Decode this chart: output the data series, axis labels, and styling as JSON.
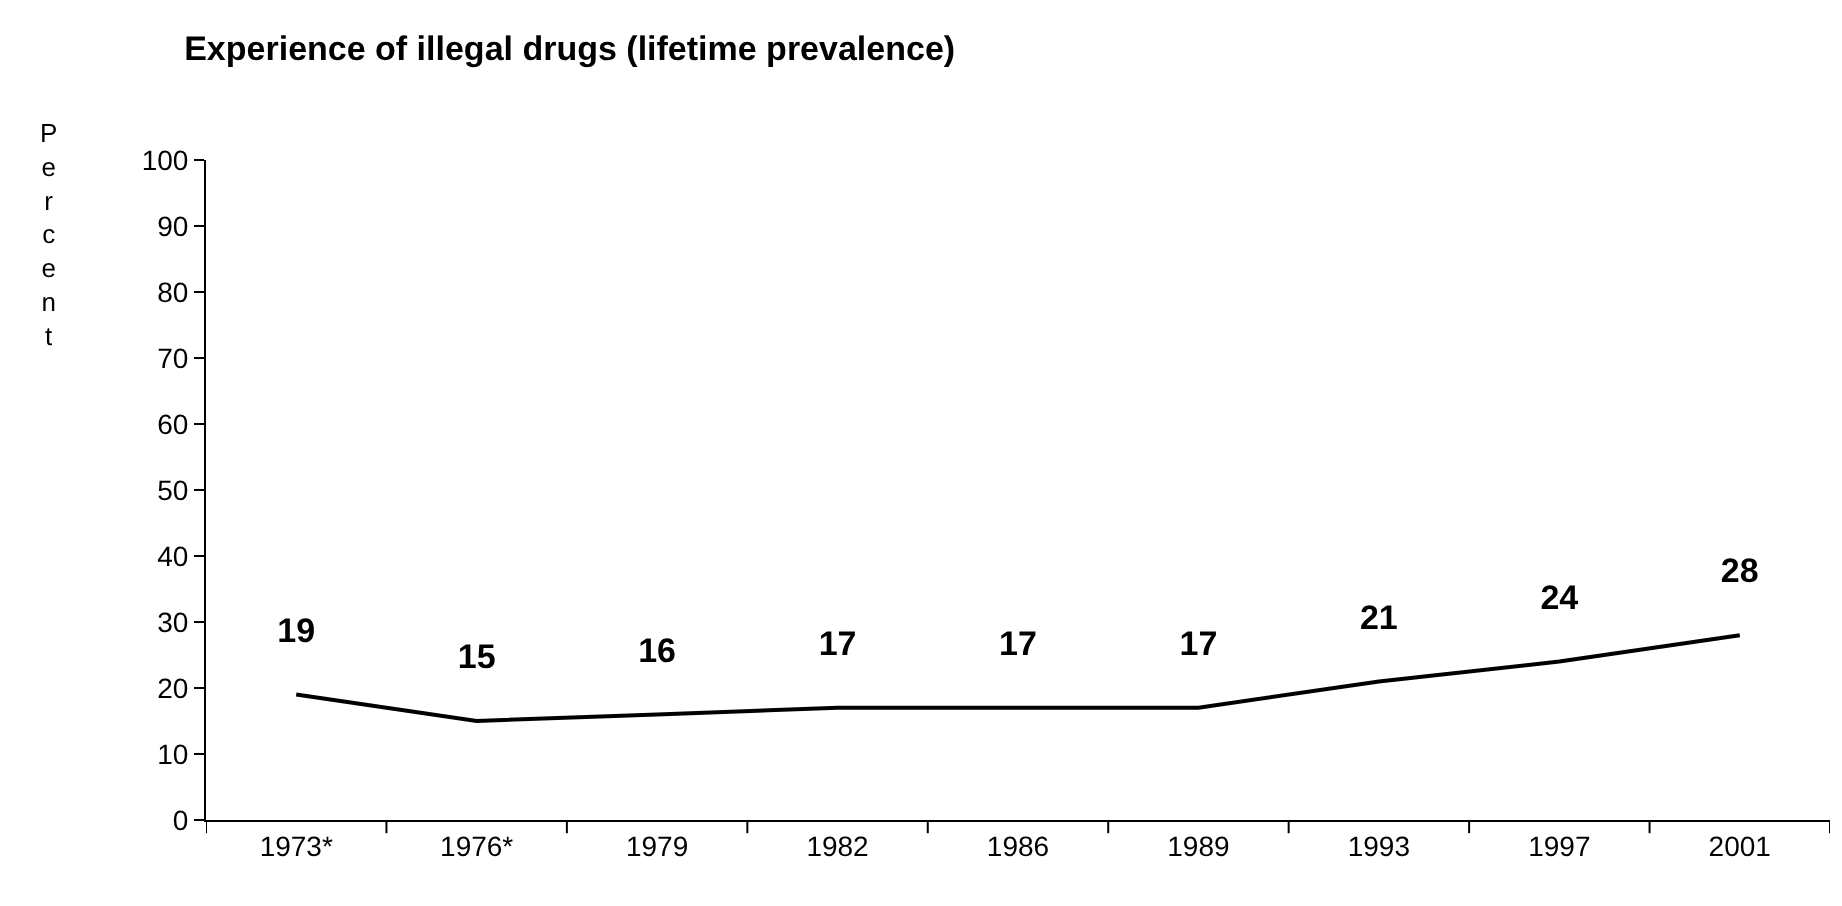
{
  "chart_data": {
    "type": "line",
    "title": "Experience of illegal drugs (lifetime prevalence)",
    "ylabel": "Percent",
    "categories": [
      "1973*",
      "1976*",
      "1979",
      "1982",
      "1986",
      "1989",
      "1993",
      "1997",
      "2001"
    ],
    "values": [
      19,
      15,
      16,
      17,
      17,
      17,
      21,
      24,
      28
    ],
    "color": "#000000",
    "ylim": [
      0,
      100
    ],
    "yticks": [
      0,
      10,
      20,
      30,
      40,
      50,
      60,
      70,
      80,
      90,
      100
    ],
    "grid": false,
    "legend": false,
    "marker": "none",
    "line_style": "solid",
    "data_labels": true
  }
}
